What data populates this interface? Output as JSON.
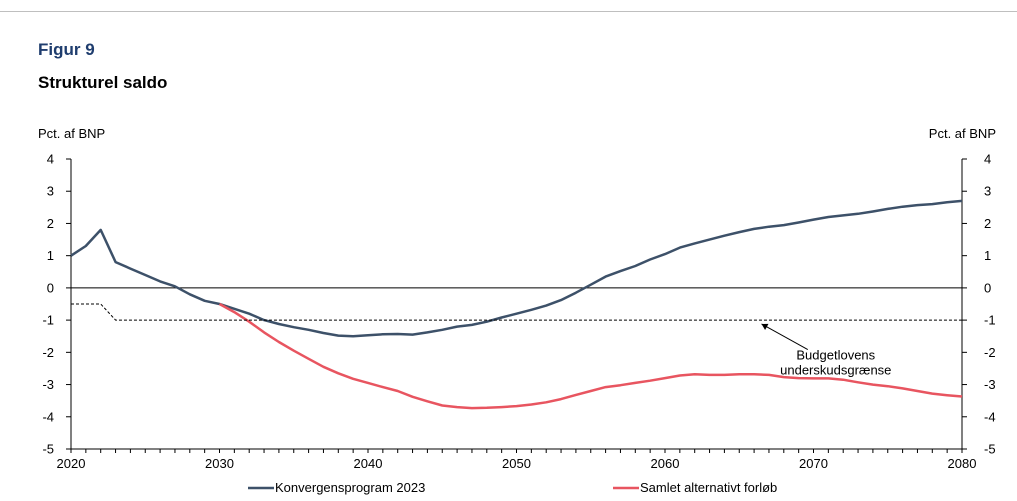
{
  "figure_label": "Figur 9",
  "title": "Strukturel saldo",
  "y_unit_left": "Pct. af BNP",
  "y_unit_right": "Pct. af BNP",
  "chart_data": {
    "type": "line",
    "title": "Strukturel saldo",
    "ylabel": "Pct. af BNP",
    "xlim": [
      2020,
      2080
    ],
    "ylim": [
      -5,
      4
    ],
    "x_ticks": [
      2020,
      2030,
      2040,
      2050,
      2060,
      2070,
      2080
    ],
    "y_ticks": [
      4,
      3,
      2,
      1,
      0,
      -1,
      -2,
      -3,
      -4,
      -5
    ],
    "legend_position": "bottom",
    "series": [
      {
        "name": "Konvergensprogram 2023",
        "color": "#3d5169",
        "x": [
          2020,
          2021,
          2022,
          2023,
          2024,
          2025,
          2026,
          2027,
          2028,
          2029,
          2030,
          2031,
          2032,
          2033,
          2034,
          2035,
          2036,
          2037,
          2038,
          2039,
          2040,
          2041,
          2042,
          2043,
          2044,
          2045,
          2046,
          2047,
          2048,
          2049,
          2050,
          2051,
          2052,
          2053,
          2054,
          2055,
          2056,
          2057,
          2058,
          2059,
          2060,
          2061,
          2062,
          2063,
          2064,
          2065,
          2066,
          2067,
          2068,
          2069,
          2070,
          2071,
          2072,
          2073,
          2074,
          2075,
          2076,
          2077,
          2078,
          2079,
          2080
        ],
        "y": [
          1.0,
          1.3,
          1.8,
          0.8,
          0.6,
          0.4,
          0.2,
          0.05,
          -0.2,
          -0.4,
          -0.5,
          -0.65,
          -0.8,
          -1.0,
          -1.12,
          -1.22,
          -1.3,
          -1.4,
          -1.48,
          -1.5,
          -1.47,
          -1.44,
          -1.43,
          -1.45,
          -1.38,
          -1.3,
          -1.2,
          -1.15,
          -1.05,
          -0.92,
          -0.8,
          -0.68,
          -0.55,
          -0.38,
          -0.15,
          0.1,
          0.35,
          0.52,
          0.68,
          0.88,
          1.05,
          1.25,
          1.38,
          1.5,
          1.62,
          1.73,
          1.83,
          1.9,
          1.95,
          2.03,
          2.12,
          2.2,
          2.25,
          2.3,
          2.37,
          2.45,
          2.52,
          2.57,
          2.6,
          2.66,
          2.7
        ]
      },
      {
        "name": "Samlet alternativt forløb",
        "color": "#e85560",
        "x": [
          2030,
          2031,
          2032,
          2033,
          2034,
          2035,
          2036,
          2037,
          2038,
          2039,
          2040,
          2041,
          2042,
          2043,
          2044,
          2045,
          2046,
          2047,
          2048,
          2049,
          2050,
          2051,
          2052,
          2053,
          2054,
          2055,
          2056,
          2057,
          2058,
          2059,
          2060,
          2061,
          2062,
          2063,
          2064,
          2065,
          2066,
          2067,
          2068,
          2069,
          2070,
          2071,
          2072,
          2073,
          2074,
          2075,
          2076,
          2077,
          2078,
          2079,
          2080
        ],
        "y": [
          -0.5,
          -0.75,
          -1.05,
          -1.38,
          -1.68,
          -1.95,
          -2.2,
          -2.45,
          -2.65,
          -2.82,
          -2.95,
          -3.08,
          -3.2,
          -3.38,
          -3.52,
          -3.65,
          -3.7,
          -3.73,
          -3.72,
          -3.7,
          -3.67,
          -3.62,
          -3.55,
          -3.45,
          -3.32,
          -3.2,
          -3.08,
          -3.02,
          -2.95,
          -2.88,
          -2.8,
          -2.72,
          -2.68,
          -2.7,
          -2.7,
          -2.68,
          -2.68,
          -2.7,
          -2.77,
          -2.8,
          -2.81,
          -2.81,
          -2.85,
          -2.93,
          -3.0,
          -3.05,
          -3.12,
          -3.2,
          -3.28,
          -3.33,
          -3.37
        ]
      },
      {
        "name": "Budgetlovens underskudsgrænse",
        "color": "#000000",
        "dashed": true,
        "x": [
          2020,
          2022,
          2023,
          2080
        ],
        "y": [
          -0.5,
          -0.5,
          -1.0,
          -1.0
        ]
      }
    ],
    "annotations": [
      {
        "text": [
          "Budgetlovens",
          "underskudsgrænse"
        ],
        "x": 2071.5,
        "y": -2.1,
        "arrow_to": [
          2066.5,
          -1.12
        ]
      }
    ]
  }
}
